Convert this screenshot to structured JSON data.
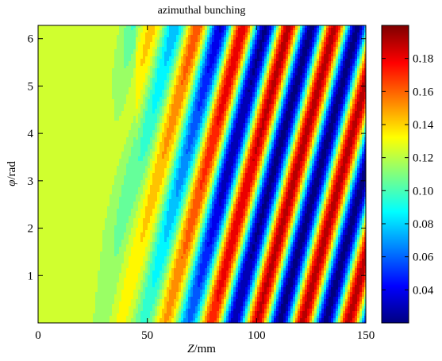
{
  "chart_data": {
    "type": "heatmap",
    "title": "azimuthal bunching",
    "xlabel_italic": "Z",
    "xlabel_unit": "/mm",
    "ylabel_italic": "φ",
    "ylabel_unit": "/rad",
    "xlim": [
      0,
      150
    ],
    "ylim": [
      0,
      6.28
    ],
    "xticks": [
      0,
      50,
      100,
      150
    ],
    "yticks": [
      1,
      2,
      3,
      4,
      5,
      6
    ],
    "colorbar": {
      "range": [
        0.02,
        0.2
      ],
      "ticks": [
        0.04,
        0.06,
        0.08,
        0.1,
        0.12,
        0.14,
        0.16,
        0.18
      ],
      "tick_labels": [
        "0.04",
        "0.06",
        "0.08",
        "0.10",
        "0.12",
        "0.14",
        "0.16",
        "0.18"
      ],
      "colormap": "jet"
    },
    "pattern": {
      "description_values": "diagonal stripes; phase = z - slope*phi",
      "slope_mm_per_rad": 5.7,
      "wavelength_mm": 21,
      "flat_region_end_mm": 30,
      "flat_value": 0.125,
      "mean_value": 0.105,
      "amplitude_max": 0.085
    }
  }
}
